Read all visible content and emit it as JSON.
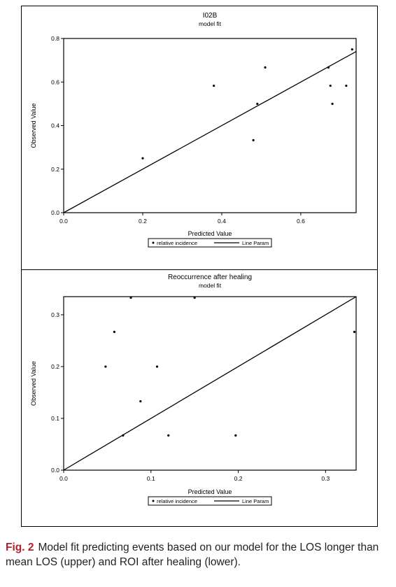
{
  "chart_data": [
    {
      "type": "scatter",
      "title": "I02B",
      "subtitle": "model fit",
      "xlabel": "Predicted Value",
      "ylabel": "Observed Value",
      "xlim": [
        0,
        0.74
      ],
      "ylim": [
        0,
        0.8
      ],
      "xticks": [
        "0.0",
        "0.2",
        "0.4",
        "0.6"
      ],
      "xtick_values": [
        0,
        0.2,
        0.4,
        0.6
      ],
      "yticks": [
        "0.0",
        "0.2",
        "0.4",
        "0.6",
        "0.8"
      ],
      "ytick_values": [
        0,
        0.2,
        0.4,
        0.6,
        0.8
      ],
      "legend": {
        "placement": "bottom",
        "point_label": "relative incidence",
        "line_label": "Line Param"
      },
      "line": {
        "x": [
          0,
          0.74
        ],
        "y": [
          0,
          0.74
        ]
      },
      "points": [
        {
          "x": 0.2,
          "y": 0.25
        },
        {
          "x": 0.38,
          "y": 0.583
        },
        {
          "x": 0.48,
          "y": 0.333
        },
        {
          "x": 0.49,
          "y": 0.5
        },
        {
          "x": 0.51,
          "y": 0.667
        },
        {
          "x": 0.67,
          "y": 0.667
        },
        {
          "x": 0.675,
          "y": 0.583
        },
        {
          "x": 0.68,
          "y": 0.5
        },
        {
          "x": 0.715,
          "y": 0.583
        },
        {
          "x": 0.73,
          "y": 0.75
        }
      ]
    },
    {
      "type": "scatter",
      "title": "Reoccurrence after healing",
      "subtitle": "model fit",
      "xlabel": "Predicted Value",
      "ylabel": "Observed Value",
      "xlim": [
        0,
        0.335
      ],
      "ylim": [
        0,
        0.335
      ],
      "xticks": [
        "0.0",
        "0.1",
        "0.2",
        "0.3"
      ],
      "xtick_values": [
        0,
        0.1,
        0.2,
        0.3
      ],
      "yticks": [
        "0.0",
        "0.1",
        "0.2",
        "0.3"
      ],
      "ytick_values": [
        0,
        0.1,
        0.2,
        0.3
      ],
      "legend": {
        "placement": "bottom",
        "point_label": "relative incidence",
        "line_label": "Line Param"
      },
      "line": {
        "x": [
          0,
          0.335
        ],
        "y": [
          0,
          0.335
        ]
      },
      "points": [
        {
          "x": 0.048,
          "y": 0.2
        },
        {
          "x": 0.058,
          "y": 0.267
        },
        {
          "x": 0.068,
          "y": 0.067
        },
        {
          "x": 0.077,
          "y": 0.333
        },
        {
          "x": 0.088,
          "y": 0.133
        },
        {
          "x": 0.107,
          "y": 0.2
        },
        {
          "x": 0.12,
          "y": 0.067
        },
        {
          "x": 0.15,
          "y": 0.333
        },
        {
          "x": 0.197,
          "y": 0.067
        },
        {
          "x": 0.333,
          "y": 0.267
        }
      ]
    }
  ],
  "caption": {
    "label": "Fig. 2",
    "text": "Model fit predicting events based on our model for the LOS longer than mean LOS (upper) and ROI after healing (lower)."
  }
}
